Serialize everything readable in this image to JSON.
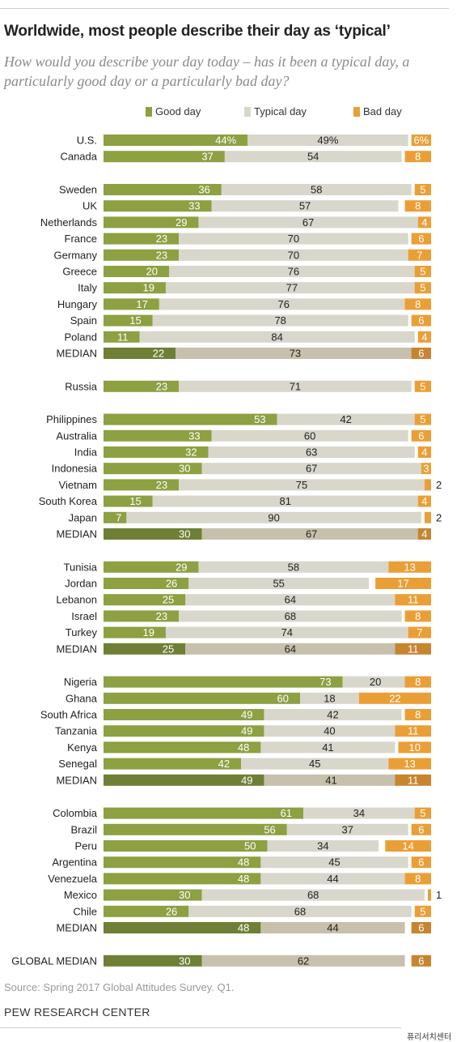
{
  "title": "Worldwide, most people describe their day as ‘typical’",
  "subtitle": "How would you describe your day today – has it been a typical day, a particularly good day or a particularly bad day?",
  "source": "Source: Spring 2017 Global Attitudes Survey. Q1.",
  "publisher": "PEW RESEARCH CENTER",
  "watermark": "퓨리서치센터",
  "colors": {
    "good": "#8da042",
    "typical": "#d9d6cc",
    "bad": "#ea9f36",
    "good_median": "#6f7f35",
    "typical_median": "#c7c0ac",
    "bad_median": "#c78530",
    "median_text": "#ffffff",
    "good_text": "#ffffff"
  },
  "chart_data": {
    "type": "bar",
    "stacked": true,
    "orientation": "horizontal",
    "xlim": [
      0,
      100
    ],
    "legend": [
      "Good day",
      "Typical day",
      "Bad day"
    ],
    "legend_position": "top",
    "categories": [
      "U.S.",
      "Canada",
      "Sweden",
      "UK",
      "Netherlands",
      "France",
      "Germany",
      "Greece",
      "Italy",
      "Hungary",
      "Spain",
      "Poland",
      "MEDIAN",
      "Russia",
      "Philippines",
      "Australia",
      "India",
      "Indonesia",
      "Vietnam",
      "South Korea",
      "Japan",
      "MEDIAN",
      "Tunisia",
      "Jordan",
      "Lebanon",
      "Israel",
      "Turkey",
      "MEDIAN",
      "Nigeria",
      "Ghana",
      "South Africa",
      "Tanzania",
      "Kenya",
      "Senegal",
      "MEDIAN",
      "Colombia",
      "Brazil",
      "Peru",
      "Argentina",
      "Venezuela",
      "Mexico",
      "Chile",
      "MEDIAN",
      "GLOBAL MEDIAN"
    ],
    "groups": [
      0,
      0,
      1,
      1,
      1,
      1,
      1,
      1,
      1,
      1,
      1,
      1,
      1,
      2,
      3,
      3,
      3,
      3,
      3,
      3,
      3,
      3,
      4,
      4,
      4,
      4,
      4,
      4,
      5,
      5,
      5,
      5,
      5,
      5,
      5,
      6,
      6,
      6,
      6,
      6,
      6,
      6,
      6,
      7
    ],
    "series": [
      {
        "name": "Good day",
        "values": [
          44,
          37,
          36,
          33,
          29,
          23,
          23,
          20,
          19,
          17,
          15,
          11,
          22,
          23,
          53,
          33,
          32,
          30,
          23,
          15,
          7,
          30,
          29,
          26,
          25,
          23,
          19,
          25,
          73,
          60,
          49,
          49,
          48,
          42,
          49,
          61,
          56,
          50,
          48,
          48,
          30,
          26,
          48,
          30
        ]
      },
      {
        "name": "Typical day",
        "values": [
          49,
          54,
          58,
          57,
          67,
          70,
          70,
          76,
          77,
          76,
          78,
          84,
          73,
          71,
          42,
          60,
          63,
          67,
          75,
          81,
          90,
          67,
          58,
          55,
          64,
          68,
          74,
          64,
          20,
          18,
          42,
          40,
          41,
          45,
          41,
          34,
          37,
          34,
          45,
          44,
          68,
          68,
          44,
          62
        ]
      },
      {
        "name": "Bad day",
        "values": [
          6,
          8,
          5,
          8,
          4,
          6,
          7,
          5,
          5,
          8,
          6,
          4,
          6,
          5,
          5,
          6,
          4,
          3,
          2,
          4,
          2,
          4,
          13,
          17,
          11,
          8,
          7,
          11,
          8,
          22,
          8,
          11,
          10,
          13,
          11,
          5,
          6,
          14,
          6,
          8,
          1,
          5,
          6,
          6
        ]
      }
    ],
    "label_suffix_first_row": "%"
  }
}
